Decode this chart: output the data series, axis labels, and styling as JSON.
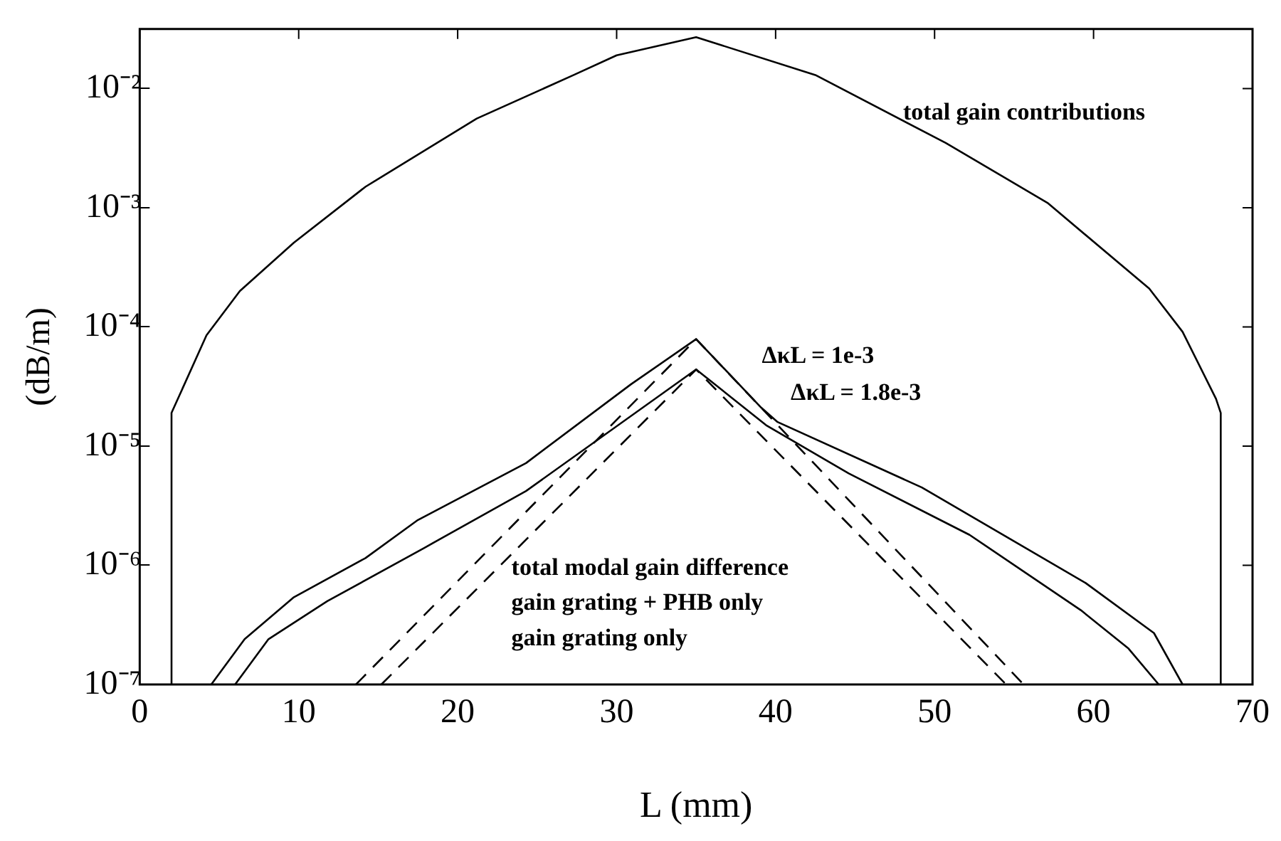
{
  "chart_data": {
    "type": "line",
    "xlabel": "L (mm)",
    "ylabel": "(dB/m)",
    "log": "y",
    "grid": false,
    "xlim": [
      0,
      70
    ],
    "xticks": [
      0,
      10,
      20,
      30,
      40,
      50,
      60,
      70
    ],
    "ylim": [
      1e-07,
      0.0316
    ],
    "yticks": [
      {
        "value": 1e-07,
        "label": "10⁻⁷"
      },
      {
        "value": 1e-06,
        "label": "10⁻⁶"
      },
      {
        "value": 1e-05,
        "label": "10⁻⁵"
      },
      {
        "value": 0.0001,
        "label": "10⁻⁴"
      },
      {
        "value": 0.001,
        "label": "10⁻³"
      },
      {
        "value": 0.01,
        "label": "10⁻²"
      }
    ],
    "series": [
      {
        "color": "#000000",
        "line_style": "solid",
        "x": [
          2,
          2,
          4.2,
          6.3,
          9.7,
          14.2,
          21.2,
          27.3,
          30,
          35,
          42.5,
          50.7,
          57.1,
          63.5,
          65.6,
          67.7,
          68,
          68
        ],
        "values": [
          1e-07,
          1.9e-05,
          8.5e-05,
          0.0002,
          0.00051,
          0.0015,
          0.0056,
          0.013,
          0.019,
          0.027,
          0.013,
          0.0035,
          0.0011,
          0.00021,
          9.1e-05,
          2.5e-05,
          1.9e-05,
          1e-07
        ]
      },
      {
        "color": "#000000",
        "line_style": "solid",
        "x": [
          4.5,
          6.6,
          9.7,
          14.2,
          17.5,
          24.3,
          30.9,
          35,
          39.1,
          40.1,
          49.2,
          59.5,
          63.8,
          65.6
        ],
        "values": [
          1e-07,
          2.4e-07,
          5.4e-07,
          1.15e-06,
          2.4e-06,
          7.2e-06,
          3.3e-05,
          7.9e-05,
          2.1e-05,
          1.6e-05,
          4.5e-06,
          7.1e-07,
          2.7e-07,
          1e-07
        ]
      },
      {
        "color": "#000000",
        "line_style": "solid",
        "x": [
          6,
          8.1,
          11.8,
          17.9,
          24.3,
          35,
          39.4,
          44.6,
          52.2,
          59.2,
          62.2,
          64.1
        ],
        "values": [
          1e-07,
          2.4e-07,
          5e-07,
          1.4e-06,
          4.2e-06,
          4.4e-05,
          1.5e-05,
          5.9e-06,
          1.8e-06,
          4.2e-07,
          2e-07,
          1e-07
        ]
      },
      {
        "color": "#000000",
        "line_style": "dashed",
        "x": [
          13.6,
          35,
          55.6
        ],
        "values": [
          1e-07,
          7.9e-05,
          1e-07
        ]
      },
      {
        "color": "#000000",
        "line_style": "dashed",
        "x": [
          15.2,
          35,
          54.5
        ],
        "values": [
          1e-07,
          4.4e-05,
          1e-07
        ]
      }
    ],
    "annotations": [
      "total gain contributions",
      "ΔκL = 1e-3",
      "ΔκL = 1.8e-3",
      "total modal gain difference",
      "gain grating + PHB only",
      "gain grating only"
    ]
  }
}
